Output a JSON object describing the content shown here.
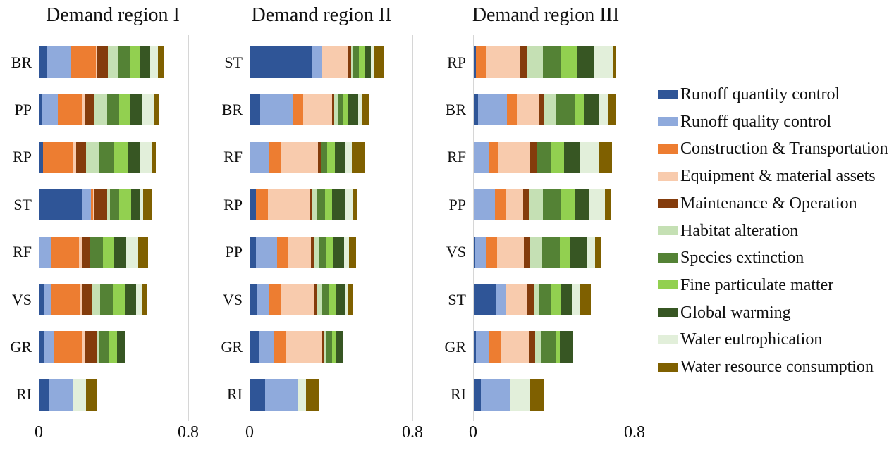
{
  "legend": {
    "items": [
      {
        "label": "Runoff quantity control",
        "color": "#2F5597"
      },
      {
        "label": "Runoff quality control",
        "color": "#8FAADC"
      },
      {
        "label": "Construction & Transportation",
        "color": "#ED7D31"
      },
      {
        "label": "Equipment & material assets",
        "color": "#F8CBAD"
      },
      {
        "label": "Maintenance & Operation",
        "color": "#843C0C"
      },
      {
        "label": "Habitat alteration",
        "color": "#C5E0B4"
      },
      {
        "label": "Species extinction",
        "color": "#548235"
      },
      {
        "label": "Fine particulate matter",
        "color": "#92D050"
      },
      {
        "label": "Global warming",
        "color": "#375623"
      },
      {
        "label": "Water eutrophication",
        "color": "#E2EFDA"
      },
      {
        "label": "Water resource consumption",
        "color": "#7F6000"
      }
    ]
  },
  "chart_data": [
    {
      "type": "bar",
      "orientation": "horizontal-stacked",
      "title": "Demand region I",
      "xlabel": "",
      "ylabel": "",
      "xlim": [
        0,
        0.8
      ],
      "xtick_labels": [
        "0",
        "0.8"
      ],
      "grid": "right-boundary-line-only",
      "legend_position": "right-shared",
      "categories": [
        "BR",
        "PP",
        "RP",
        "ST",
        "RF",
        "VS",
        "GR",
        "RI"
      ],
      "series": [
        {
          "name": "Runoff quantity control",
          "values": [
            0.042,
            0.011,
            0.02,
            0.232,
            0.0,
            0.023,
            0.023,
            0.049
          ]
        },
        {
          "name": "Runoff quality control",
          "values": [
            0.128,
            0.087,
            0.0,
            0.044,
            0.06,
            0.042,
            0.057,
            0.128
          ]
        },
        {
          "name": "Construction & Transportation",
          "values": [
            0.132,
            0.132,
            0.161,
            0.01,
            0.151,
            0.151,
            0.151,
            0.0
          ]
        },
        {
          "name": "Equipment & material assets",
          "values": [
            0.008,
            0.011,
            0.015,
            0.006,
            0.015,
            0.015,
            0.011,
            0.0
          ]
        },
        {
          "name": "Maintenance & Operation",
          "values": [
            0.055,
            0.053,
            0.054,
            0.07,
            0.042,
            0.053,
            0.064,
            0.0
          ]
        },
        {
          "name": "Habitat alteration",
          "values": [
            0.054,
            0.068,
            0.072,
            0.014,
            0.0,
            0.042,
            0.015,
            0.0
          ]
        },
        {
          "name": "Species extinction",
          "values": [
            0.065,
            0.064,
            0.073,
            0.051,
            0.072,
            0.068,
            0.049,
            0.0
          ]
        },
        {
          "name": "Fine particulate matter",
          "values": [
            0.054,
            0.057,
            0.075,
            0.064,
            0.057,
            0.064,
            0.045,
            0.0
          ]
        },
        {
          "name": "Global warming",
          "values": [
            0.055,
            0.068,
            0.067,
            0.048,
            0.068,
            0.06,
            0.045,
            0.0
          ]
        },
        {
          "name": "Water eutrophication",
          "values": [
            0.042,
            0.06,
            0.068,
            0.014,
            0.064,
            0.034,
            0.0,
            0.072
          ]
        },
        {
          "name": "Water resource consumption",
          "values": [
            0.033,
            0.026,
            0.019,
            0.05,
            0.053,
            0.023,
            0.0,
            0.06
          ]
        }
      ]
    },
    {
      "type": "bar",
      "orientation": "horizontal-stacked",
      "title": "Demand region II",
      "xlabel": "",
      "ylabel": "",
      "xlim": [
        0,
        0.8
      ],
      "xtick_labels": [
        "0",
        "0.8"
      ],
      "grid": "right-boundary-line-only",
      "legend_position": "right-shared",
      "categories": [
        "ST",
        "BR",
        "RF",
        "RP",
        "PP",
        "VS",
        "GR",
        "RI"
      ],
      "series": [
        {
          "name": "Runoff quantity control",
          "values": [
            0.302,
            0.05,
            0.0,
            0.029,
            0.026,
            0.031,
            0.04,
            0.072
          ]
        },
        {
          "name": "Runoff quality control",
          "values": [
            0.052,
            0.162,
            0.09,
            0.0,
            0.104,
            0.058,
            0.079,
            0.165
          ]
        },
        {
          "name": "Construction & Transportation",
          "values": [
            0.0,
            0.049,
            0.058,
            0.056,
            0.058,
            0.06,
            0.056,
            0.0
          ]
        },
        {
          "name": "Equipment & material assets",
          "values": [
            0.128,
            0.14,
            0.186,
            0.211,
            0.11,
            0.163,
            0.174,
            0.0
          ]
        },
        {
          "name": "Maintenance & Operation",
          "values": [
            0.012,
            0.011,
            0.012,
            0.009,
            0.014,
            0.012,
            0.012,
            0.0
          ]
        },
        {
          "name": "Habitat alteration",
          "values": [
            0.012,
            0.017,
            0.0,
            0.025,
            0.027,
            0.028,
            0.014,
            0.0
          ]
        },
        {
          "name": "Species extinction",
          "values": [
            0.026,
            0.027,
            0.033,
            0.037,
            0.035,
            0.032,
            0.026,
            0.0
          ]
        },
        {
          "name": "Fine particulate matter",
          "values": [
            0.028,
            0.026,
            0.035,
            0.035,
            0.031,
            0.037,
            0.022,
            0.0
          ]
        },
        {
          "name": "Global warming",
          "values": [
            0.032,
            0.048,
            0.051,
            0.065,
            0.056,
            0.044,
            0.03,
            0.0
          ]
        },
        {
          "name": "Water eutrophication",
          "values": [
            0.015,
            0.018,
            0.033,
            0.037,
            0.025,
            0.012,
            0.0,
            0.035
          ]
        },
        {
          "name": "Water resource consumption",
          "values": [
            0.048,
            0.036,
            0.064,
            0.019,
            0.032,
            0.029,
            0.0,
            0.065
          ]
        }
      ]
    },
    {
      "type": "bar",
      "orientation": "horizontal-stacked",
      "title": "Demand region III",
      "xlabel": "",
      "ylabel": "",
      "xlim": [
        0,
        0.8
      ],
      "xtick_labels": [
        "0",
        "0.8"
      ],
      "grid": "right-boundary-line-only",
      "legend_position": "right-shared",
      "categories": [
        "RP",
        "BR",
        "RF",
        "PP",
        "VS",
        "ST",
        "GR",
        "RI"
      ],
      "series": [
        {
          "name": "Runoff quantity control",
          "values": [
            0.012,
            0.021,
            0.0,
            0.005,
            0.006,
            0.107,
            0.009,
            0.036
          ]
        },
        {
          "name": "Runoff quality control",
          "values": [
            0.0,
            0.144,
            0.072,
            0.101,
            0.058,
            0.05,
            0.066,
            0.144
          ]
        },
        {
          "name": "Construction & Transportation",
          "values": [
            0.052,
            0.047,
            0.05,
            0.054,
            0.052,
            0.0,
            0.058,
            0.0
          ]
        },
        {
          "name": "Equipment & material assets",
          "values": [
            0.167,
            0.108,
            0.157,
            0.086,
            0.133,
            0.105,
            0.143,
            0.0
          ]
        },
        {
          "name": "Maintenance & Operation",
          "values": [
            0.031,
            0.027,
            0.033,
            0.03,
            0.029,
            0.035,
            0.029,
            0.0
          ]
        },
        {
          "name": "Habitat alteration",
          "values": [
            0.082,
            0.061,
            0.0,
            0.066,
            0.06,
            0.029,
            0.031,
            0.0
          ]
        },
        {
          "name": "Species extinction",
          "values": [
            0.087,
            0.091,
            0.072,
            0.09,
            0.088,
            0.06,
            0.068,
            0.0
          ]
        },
        {
          "name": "Fine particulate matter",
          "values": [
            0.079,
            0.047,
            0.064,
            0.068,
            0.052,
            0.042,
            0.023,
            0.0
          ]
        },
        {
          "name": "Global warming",
          "values": [
            0.084,
            0.075,
            0.078,
            0.072,
            0.08,
            0.061,
            0.066,
            0.0
          ]
        },
        {
          "name": "Water eutrophication",
          "values": [
            0.095,
            0.044,
            0.097,
            0.077,
            0.044,
            0.04,
            0.0,
            0.1
          ]
        },
        {
          "name": "Water resource consumption",
          "values": [
            0.016,
            0.037,
            0.062,
            0.033,
            0.029,
            0.05,
            0.0,
            0.066
          ]
        }
      ]
    }
  ]
}
